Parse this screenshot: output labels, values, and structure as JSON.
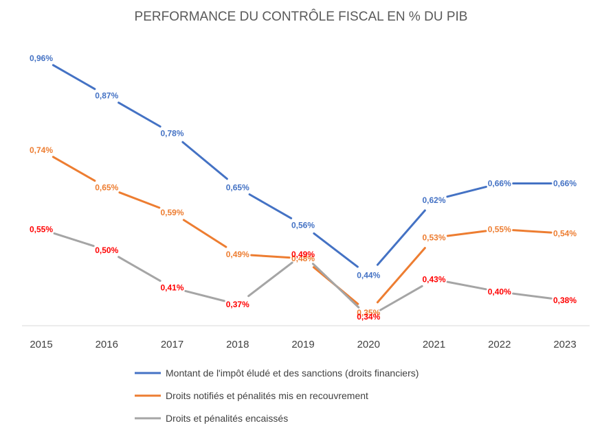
{
  "chart_data": {
    "type": "line",
    "title": "PERFORMANCE DU CONTRÔLE FISCAL EN % DU PIB",
    "categories": [
      "2015",
      "2016",
      "2017",
      "2018",
      "2019",
      "2020",
      "2021",
      "2022",
      "2023"
    ],
    "ylim": [
      0.3,
      1.0
    ],
    "grid": false,
    "legend_position": "bottom",
    "series": [
      {
        "name": "Montant de l'impôt éludé et des sanctions (droits financiers)",
        "color": "#4472C4",
        "values": [
          0.96,
          0.87,
          0.78,
          0.65,
          0.56,
          0.44,
          0.62,
          0.66,
          0.66
        ],
        "labels": [
          "0,96%",
          "0,87%",
          "0,78%",
          "0,65%",
          "0,56%",
          "0,44%",
          "0,62%",
          "0,66%",
          "0,66%"
        ],
        "label_colors": [
          "#4472C4",
          "#4472C4",
          "#4472C4",
          "#4472C4",
          "#4472C4",
          "#4472C4",
          "#4472C4",
          "#4472C4",
          "#4472C4"
        ]
      },
      {
        "name": "Droits notifiés et pénalités mis en recouvrement",
        "color": "#ED7D31",
        "values": [
          0.74,
          0.65,
          0.59,
          0.49,
          0.48,
          0.35,
          0.53,
          0.55,
          0.54
        ],
        "labels": [
          "0,74%",
          "0,65%",
          "0,59%",
          "0,49%",
          "0,48%",
          "0,35%",
          "0,53%",
          "0,55%",
          "0,54%"
        ],
        "label_colors": [
          "#ED7D31",
          "#ED7D31",
          "#ED7D31",
          "#ED7D31",
          "#ED7D31",
          "#ED7D31",
          "#ED7D31",
          "#ED7D31",
          "#ED7D31"
        ]
      },
      {
        "name": "Droits et pénalités encaissés",
        "color": "#A5A5A5",
        "values": [
          0.55,
          0.5,
          0.41,
          0.37,
          0.49,
          0.34,
          0.43,
          0.4,
          0.38
        ],
        "labels": [
          "0,55%",
          "0,50%",
          "0,41%",
          "0,37%",
          "0,49%",
          "0,34%",
          "0,43%",
          "0,40%",
          "0,38%"
        ],
        "label_colors": [
          "#FF0000",
          "#FF0000",
          "#FF0000",
          "#FF0000",
          "#FF0000",
          "#FF0000",
          "#FF0000",
          "#FF0000",
          "#FF0000"
        ]
      }
    ]
  }
}
